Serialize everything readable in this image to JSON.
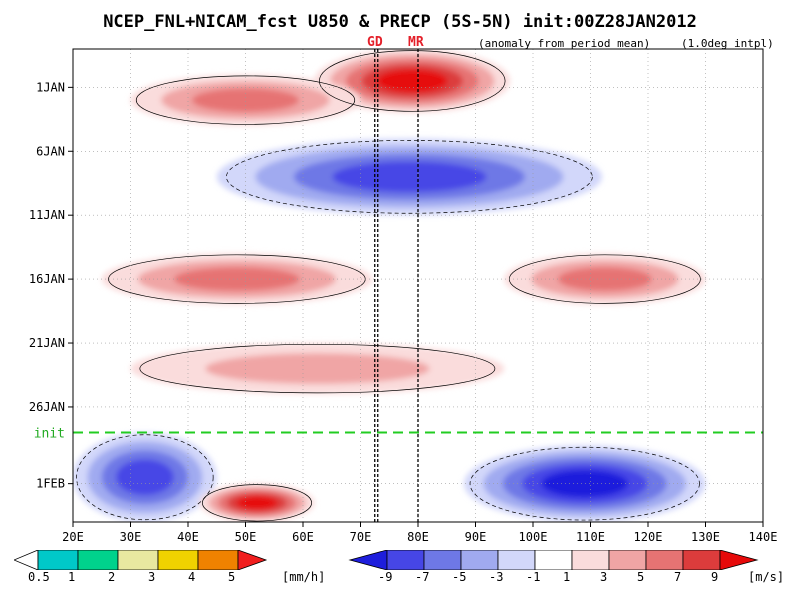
{
  "title": "NCEP_FNL+NICAM_fcst U850 & PRECP (5S-5N) init:00Z28JAN2012",
  "subtitle_left": "(anomaly from period mean)",
  "subtitle_right": "(1.0deg intpl)",
  "markers": [
    {
      "label": "GD",
      "lon": 73
    },
    {
      "label": "MR",
      "lon": 80
    }
  ],
  "init_label": "init",
  "chart_data": {
    "type": "heatmap",
    "title": "NCEP_FNL+NICAM_fcst U850 & PRECP (5S-5N) init:00Z28JAN2012",
    "x_axis": {
      "range": [
        20,
        140
      ],
      "ticks": [
        "20E",
        "30E",
        "40E",
        "50E",
        "60E",
        "70E",
        "80E",
        "90E",
        "100E",
        "110E",
        "120E",
        "130E",
        "140E"
      ],
      "tick_values": [
        20,
        30,
        40,
        50,
        60,
        70,
        80,
        90,
        100,
        110,
        120,
        130,
        140
      ]
    },
    "y_axis": {
      "ticks": [
        "1JAN",
        "6JAN",
        "11JAN",
        "16JAN",
        "21JAN",
        "26JAN",
        "1FEB"
      ],
      "tick_day_of_period": [
        1,
        6,
        11,
        16,
        21,
        26,
        32
      ],
      "range_day_of_period": [
        -2,
        35
      ],
      "init_day_of_period": 28
    },
    "u850_anomaly_features": [
      {
        "lon": [
          62,
          96
        ],
        "day": [
          -2,
          3
        ],
        "sign": "positive",
        "max": 9
      },
      {
        "lon": [
          30,
          70
        ],
        "day": [
          0,
          4
        ],
        "sign": "positive",
        "max": 5
      },
      {
        "lon": [
          45,
          112
        ],
        "day": [
          5,
          11
        ],
        "sign": "negative",
        "max": -7
      },
      {
        "lon": [
          25,
          72
        ],
        "day": [
          14,
          18
        ],
        "sign": "positive",
        "max": 5
      },
      {
        "lon": [
          95,
          130
        ],
        "day": [
          14,
          18
        ],
        "sign": "positive",
        "max": 5
      },
      {
        "lon": [
          30,
          95
        ],
        "day": [
          21,
          25
        ],
        "sign": "positive",
        "max": 3
      },
      {
        "lon": [
          20,
          45
        ],
        "day": [
          28,
          35
        ],
        "sign": "negative",
        "max": -7
      },
      {
        "lon": [
          42,
          62
        ],
        "day": [
          32,
          35
        ],
        "sign": "positive",
        "max": 9
      },
      {
        "lon": [
          88,
          130
        ],
        "day": [
          29,
          35
        ],
        "sign": "negative",
        "max": -9
      }
    ],
    "precip_legend": {
      "unit": "[mm/h]",
      "levels": [
        "0.5",
        "1",
        "2",
        "3",
        "4",
        "5"
      ],
      "colors": [
        "#00c8c8",
        "#00d28c",
        "#e8e8a0",
        "#f0d200",
        "#f08200",
        "#f01e1e"
      ]
    },
    "u850_legend": {
      "unit": "[m/s]",
      "levels": [
        "-9",
        "-7",
        "-5",
        "-3",
        "-1",
        "1",
        "3",
        "5",
        "7",
        "9"
      ],
      "colors": [
        "#1e1edc",
        "#4646e6",
        "#6e78e6",
        "#a0aaf0",
        "#d2d7fa",
        "#ffffff",
        "#fadcdc",
        "#f0a5a5",
        "#e67373",
        "#dc3c3c",
        "#e60a0a"
      ]
    }
  }
}
